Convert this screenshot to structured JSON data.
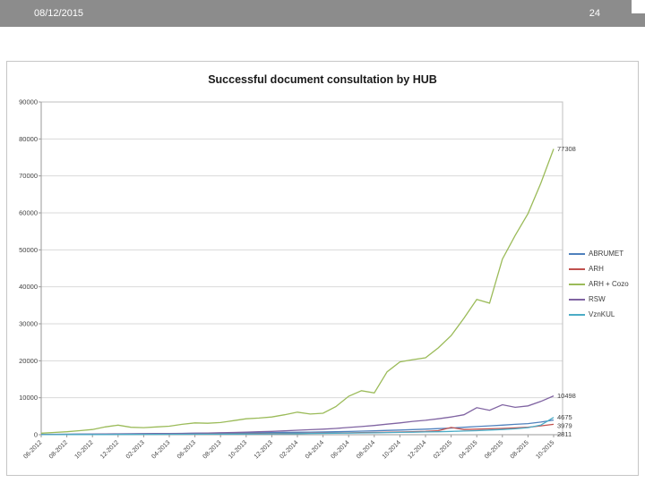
{
  "header": {
    "date": "08/12/2015",
    "page_number": "24"
  },
  "chart_data": {
    "type": "line",
    "title": "Successful document consultation by HUB",
    "xlabel": "",
    "ylabel": "",
    "ylim": [
      0,
      90000
    ],
    "ytick_step": 10000,
    "grid": true,
    "legend_position": "right",
    "tick_every": 2,
    "x": [
      "06-2012",
      "07-2012",
      "08-2012",
      "09-2012",
      "10-2012",
      "11-2012",
      "12-2012",
      "01-2013",
      "02-2013",
      "03-2013",
      "04-2013",
      "05-2013",
      "06-2013",
      "07-2013",
      "08-2013",
      "09-2013",
      "10-2013",
      "11-2013",
      "12-2013",
      "01-2014",
      "02-2014",
      "03-2014",
      "04-2014",
      "05-2014",
      "06-2014",
      "07-2014",
      "08-2014",
      "09-2014",
      "10-2014",
      "11-2014",
      "12-2014",
      "01-2015",
      "02-2015",
      "03-2015",
      "04-2015",
      "05-2015",
      "06-2015",
      "07-2015",
      "08-2015",
      "09-2015",
      "10-2015"
    ],
    "series": [
      {
        "name": "ABRUMET",
        "color": "#4f81bd",
        "values": [
          100,
          120,
          140,
          160,
          180,
          210,
          240,
          270,
          300,
          320,
          340,
          360,
          380,
          400,
          430,
          460,
          500,
          540,
          580,
          620,
          660,
          700,
          750,
          800,
          880,
          960,
          1050,
          1150,
          1250,
          1380,
          1500,
          1650,
          1800,
          2000,
          2200,
          2400,
          2600,
          2800,
          3000,
          3400,
          3979
        ]
      },
      {
        "name": "ARH",
        "color": "#c0504d",
        "values": [
          60,
          70,
          80,
          90,
          100,
          110,
          120,
          130,
          140,
          150,
          160,
          175,
          190,
          205,
          220,
          240,
          260,
          280,
          300,
          330,
          360,
          390,
          420,
          460,
          500,
          550,
          600,
          660,
          720,
          800,
          900,
          1100,
          1950,
          1400,
          1500,
          1600,
          1700,
          1850,
          2000,
          2400,
          2811
        ]
      },
      {
        "name": "ARH + Cozo",
        "color": "#9bbb59",
        "values": [
          400,
          600,
          800,
          1100,
          1400,
          2100,
          2600,
          2000,
          1900,
          2100,
          2300,
          2800,
          3200,
          3100,
          3300,
          3800,
          4300,
          4500,
          4800,
          5400,
          6100,
          5600,
          5800,
          7600,
          10400,
          11900,
          11300,
          17000,
          19700,
          20300,
          20800,
          23500,
          26800,
          31500,
          36600,
          35600,
          47500,
          53900,
          59800,
          68000,
          77308
        ]
      },
      {
        "name": "RSW",
        "color": "#8064a2",
        "values": [
          80,
          90,
          100,
          120,
          140,
          160,
          180,
          200,
          230,
          260,
          300,
          350,
          400,
          460,
          530,
          610,
          700,
          800,
          900,
          1050,
          1200,
          1350,
          1500,
          1700,
          1950,
          2200,
          2500,
          2850,
          3200,
          3600,
          3900,
          4300,
          4800,
          5400,
          7300,
          6600,
          8100,
          7400,
          7800,
          9000,
          10498
        ]
      },
      {
        "name": "VznKUL",
        "color": "#4bacc6",
        "values": [
          30,
          35,
          40,
          45,
          50,
          60,
          70,
          80,
          90,
          100,
          110,
          120,
          135,
          150,
          165,
          180,
          200,
          220,
          240,
          270,
          300,
          330,
          360,
          400,
          440,
          480,
          520,
          570,
          620,
          680,
          740,
          800,
          900,
          1000,
          1100,
          1250,
          1400,
          1600,
          1900,
          2600,
          4675
        ]
      }
    ],
    "end_labels": [
      {
        "series": "ARH + Cozo",
        "value": "77308"
      },
      {
        "series": "RSW",
        "value": "10498"
      },
      {
        "series": "VznKUL",
        "value": "4675"
      },
      {
        "series": "ABRUMET",
        "value": "3979"
      },
      {
        "series": "ARH",
        "value": "2811"
      }
    ]
  }
}
